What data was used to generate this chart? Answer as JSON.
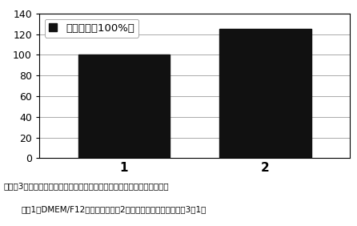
{
  "categories": [
    "1",
    "2"
  ],
  "values": [
    100,
    125
  ],
  "bar_color": "#111111",
  "bar_width": 0.65,
  "ylim": [
    0,
    140
  ],
  "yticks": [
    0,
    20,
    40,
    60,
    80,
    100,
    120,
    140
  ],
  "legend_label": "细胞活性（100%）",
  "caption_line1": "实施例3：麦冬多糖与白术多糖组合物对脖带间充质干细胞增殖的促进作用",
  "caption_line2": "注：1：DMEM/F12培养基对照组；2：麦冬多糖与白术多糖组（3：1）",
  "background_color": "#ffffff",
  "grid_color": "#aaaaaa",
  "font_size_tick": 9,
  "font_size_legend": 9.5,
  "font_size_caption1": 7.5,
  "font_size_caption2": 7.5,
  "xlim": [
    -0.6,
    1.6
  ]
}
